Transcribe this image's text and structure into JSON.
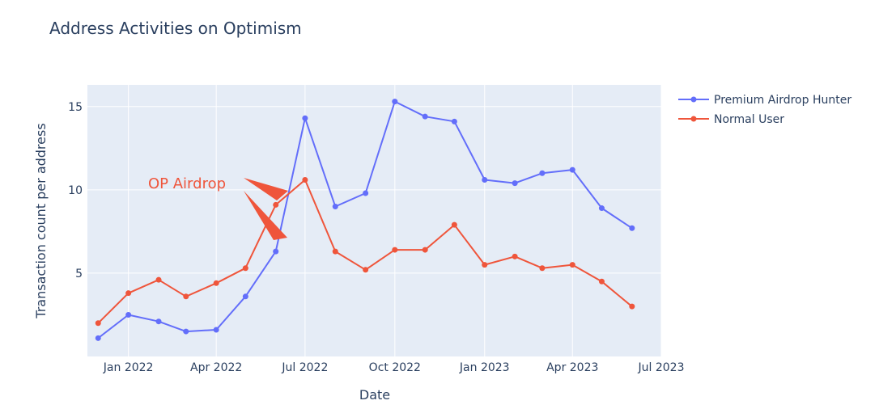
{
  "chart_data": {
    "type": "line",
    "title": "Address Activities on Optimism",
    "xlabel": "Date",
    "ylabel": "Transaction count per address",
    "x_range": [
      "2021-11-20",
      "2023-07-01"
    ],
    "ylim": [
      0,
      16.3
    ],
    "y_ticks": [
      5,
      10,
      15
    ],
    "x_ticks": [
      {
        "date": "2022-01-01",
        "label": "Jan 2022"
      },
      {
        "date": "2022-04-01",
        "label": "Apr 2022"
      },
      {
        "date": "2022-07-01",
        "label": "Jul 2022"
      },
      {
        "date": "2022-10-01",
        "label": "Oct 2022"
      },
      {
        "date": "2023-01-01",
        "label": "Jan 2023"
      },
      {
        "date": "2023-04-01",
        "label": "Apr 2023"
      },
      {
        "date": "2023-07-01",
        "label": "Jul 2023"
      }
    ],
    "grid": true,
    "legend_position": "top-right",
    "x": [
      "2021-12-01",
      "2022-01-01",
      "2022-02-01",
      "2022-03-01",
      "2022-04-01",
      "2022-05-01",
      "2022-06-01",
      "2022-07-01",
      "2022-08-01",
      "2022-09-01",
      "2022-10-01",
      "2022-11-01",
      "2022-12-01",
      "2023-01-01",
      "2023-02-01",
      "2023-03-01",
      "2023-04-01",
      "2023-05-01",
      "2023-06-01"
    ],
    "series": [
      {
        "name": "Premium Airdrop Hunter",
        "color": "#636efa",
        "values": [
          1.1,
          2.5,
          2.1,
          1.5,
          1.6,
          3.6,
          6.3,
          14.3,
          9.0,
          9.8,
          15.3,
          14.4,
          14.1,
          10.6,
          10.4,
          11.0,
          11.2,
          8.9,
          7.7
        ]
      },
      {
        "name": "Normal User",
        "color": "#ef553b",
        "values": [
          2.0,
          3.8,
          4.6,
          3.6,
          4.4,
          5.3,
          9.1,
          10.6,
          6.3,
          5.2,
          6.4,
          6.4,
          7.9,
          5.5,
          6.0,
          5.3,
          5.5,
          4.5,
          3.0
        ]
      }
    ],
    "annotation": {
      "text": "OP Airdrop",
      "color": "#ef553b"
    }
  }
}
